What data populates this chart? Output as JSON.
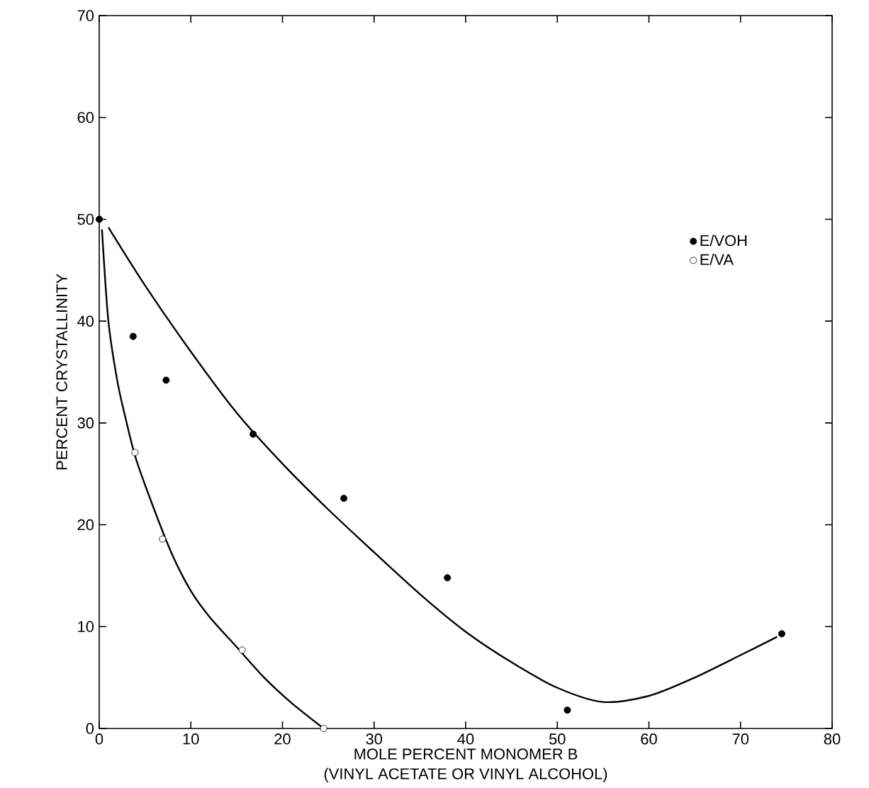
{
  "chart_data": {
    "type": "scatter",
    "xlabel": "MOLE PERCENT MONOMER B\n(VINYL ACETATE OR VINYL ALCOHOL)",
    "ylabel": "PERCENT CRYSTALLINITY",
    "xlim": [
      0,
      80
    ],
    "ylim": [
      0,
      70
    ],
    "xticks": [
      0,
      10,
      20,
      30,
      40,
      50,
      60,
      70,
      80
    ],
    "yticks": [
      0,
      10,
      20,
      30,
      40,
      50,
      60,
      70
    ],
    "marker": "circle",
    "legend": "right",
    "series": [
      {
        "name": "E/VOH",
        "color": "#000000",
        "x": [
          0,
          3.7,
          7.3,
          16.8,
          26.7,
          38.0,
          51.1,
          74.5
        ],
        "values": [
          50,
          38.5,
          34.2,
          28.9,
          22.6,
          14.8,
          1.8,
          9.3
        ]
      },
      {
        "name": "E/VA",
        "color": "#ffffff",
        "x": [
          3.9,
          6.9,
          15.6,
          24.5
        ],
        "values": [
          27.1,
          18.6,
          7.7,
          0
        ]
      },
      {
        "type": "line",
        "color": "#000000",
        "marker": "none",
        "x": [
          1,
          5,
          10,
          15,
          20,
          25,
          30,
          35,
          40,
          45,
          50,
          55,
          60,
          65,
          70,
          74
        ],
        "values": [
          49.2,
          43.5,
          37,
          31,
          26,
          21.5,
          17.3,
          13.2,
          9.5,
          6.5,
          4,
          2.6,
          3.2,
          5,
          7.2,
          9
        ]
      },
      {
        "type": "line",
        "color": "#000000",
        "marker": "none",
        "x": [
          0.3,
          1,
          2,
          3,
          4,
          6,
          8,
          10,
          12,
          15,
          18,
          21,
          24.5
        ],
        "values": [
          49,
          40,
          34,
          30,
          26.5,
          21.5,
          17,
          13.5,
          11,
          8,
          5,
          2.5,
          0
        ]
      }
    ]
  }
}
